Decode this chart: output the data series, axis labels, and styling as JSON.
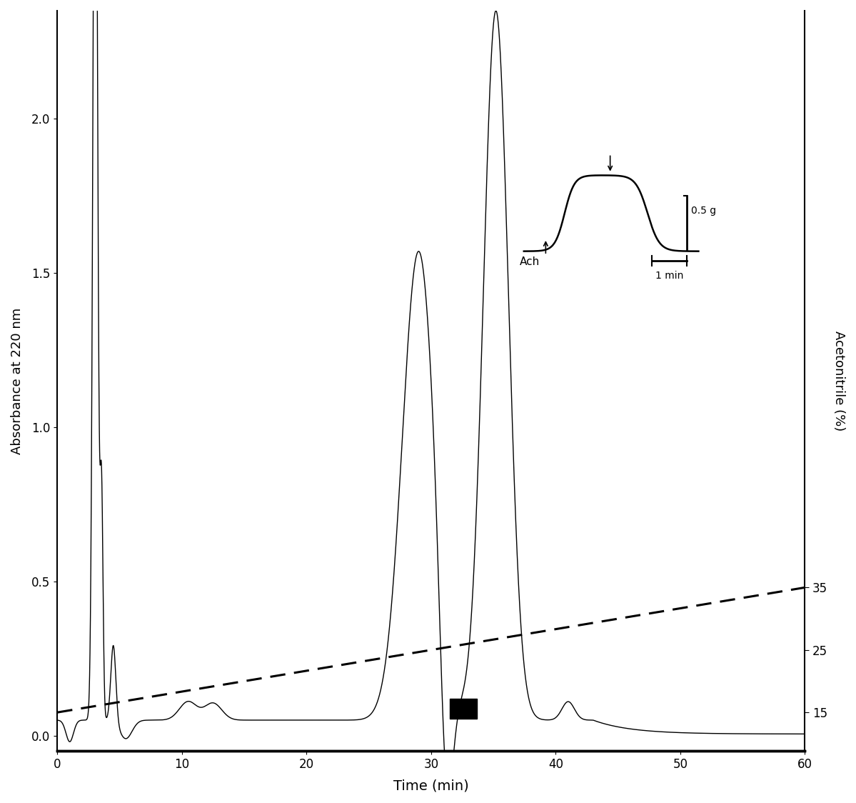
{
  "xlim": [
    0,
    60
  ],
  "ylim_left": [
    -0.05,
    2.35
  ],
  "ylim_right": [
    13,
    40
  ],
  "xlabel": "Time (min)",
  "ylabel_left": "Absorbance at 220 nm",
  "ylabel_right": "Acetonitrile (%)",
  "right_yticks": [
    15,
    25,
    35
  ],
  "left_yticks": [
    0.0,
    0.5,
    1.0,
    1.5,
    2.0
  ],
  "xticks": [
    0,
    10,
    20,
    30,
    40,
    50,
    60
  ],
  "black_bar_x": 31.5,
  "black_bar_y": 0.055,
  "black_bar_width": 2.2,
  "black_bar_height": 0.065,
  "background_color": "#ffffff",
  "line_color": "#000000",
  "dashed_color": "#000000",
  "grad_y0": 0.075,
  "grad_y1": 0.48
}
